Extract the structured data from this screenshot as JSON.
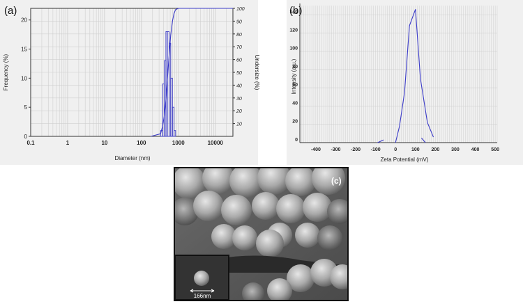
{
  "panels": {
    "a": {
      "label": "(a)"
    },
    "b": {
      "label": "(b)"
    },
    "c": {
      "label": "(c)"
    }
  },
  "colors": {
    "series": "#3b3bc8",
    "grid": "#cfcfcf",
    "axis": "#333333",
    "panel_bg": "#f0f0f0"
  },
  "sem": {
    "scale_label": "166nm",
    "icon": "sem-micrograph"
  },
  "chart_data": [
    {
      "type": "bar",
      "panel": "a",
      "xscale": "log",
      "xlim": [
        0.1,
        30000
      ],
      "x_ticks": [
        0.1,
        1,
        10,
        100,
        1000,
        10000
      ],
      "x_tick_labels": [
        "0.1",
        "1",
        "10",
        "100",
        "1000",
        "10000"
      ],
      "xlabel": "Diameter (nm)",
      "ylabel": "Frequency (%)",
      "ylim": [
        0,
        22
      ],
      "y_ticks": [
        0,
        5,
        10,
        15,
        20
      ],
      "y_tick_labels": [
        "0",
        "5",
        "10",
        "15",
        "20"
      ],
      "y2label": "Undersize (%)",
      "y2lim": [
        0,
        100
      ],
      "y2_ticks": [
        10,
        20,
        30,
        40,
        50,
        60,
        70,
        80,
        90,
        100
      ],
      "y2_tick_labels": [
        "10",
        "20",
        "30",
        "40",
        "50",
        "60",
        "70",
        "80",
        "90",
        "100"
      ],
      "grid": true,
      "bins": [
        {
          "x0": 330,
          "x1": 375,
          "value": 1
        },
        {
          "x0": 375,
          "x1": 415,
          "value": 9
        },
        {
          "x0": 415,
          "x1": 460,
          "value": 13
        },
        {
          "x0": 460,
          "x1": 505,
          "value": 18
        },
        {
          "x0": 505,
          "x1": 560,
          "value": 18
        },
        {
          "x0": 560,
          "x1": 620,
          "value": 16
        },
        {
          "x0": 620,
          "x1": 690,
          "value": 10
        },
        {
          "x0": 690,
          "x1": 760,
          "value": 5
        },
        {
          "x0": 760,
          "x1": 840,
          "value": 1
        }
      ],
      "cumulative": {
        "x": [
          180,
          330,
          375,
          415,
          460,
          505,
          560,
          620,
          690,
          760,
          840,
          1000,
          30000
        ],
        "y": [
          0,
          2,
          8,
          16,
          28,
          45,
          63,
          79,
          90,
          96,
          99,
          100,
          100
        ]
      }
    },
    {
      "type": "line",
      "panel": "b",
      "xlabel": "Zeta Potential (mV)",
      "ylabel": "Intensity (a.u.)",
      "xlim": [
        -480,
        510
      ],
      "ylim": [
        0,
        150
      ],
      "x_ticks": [
        -400,
        -300,
        -200,
        -100,
        0,
        100,
        200,
        300,
        400,
        500
      ],
      "x_tick_labels": [
        "-400",
        "-300",
        "-200",
        "-100",
        "0",
        "100",
        "200",
        "300",
        "400",
        "500"
      ],
      "y_ticks": [
        0,
        20,
        40,
        60,
        80,
        100,
        120,
        140
      ],
      "y_tick_labels": [
        "0",
        "20",
        "40",
        "60",
        "80",
        "100",
        "120",
        "140"
      ],
      "grid": true,
      "series": [
        {
          "x": [
            -90,
            -60
          ],
          "y": [
            0,
            3
          ]
        },
        {
          "x": [
            0,
            20,
            45,
            70,
            100,
            125,
            160,
            190
          ],
          "y": [
            0,
            18,
            55,
            128,
            146,
            70,
            22,
            6
          ]
        },
        {
          "x": [
            130,
            150
          ],
          "y": [
            5,
            0
          ]
        }
      ]
    }
  ]
}
